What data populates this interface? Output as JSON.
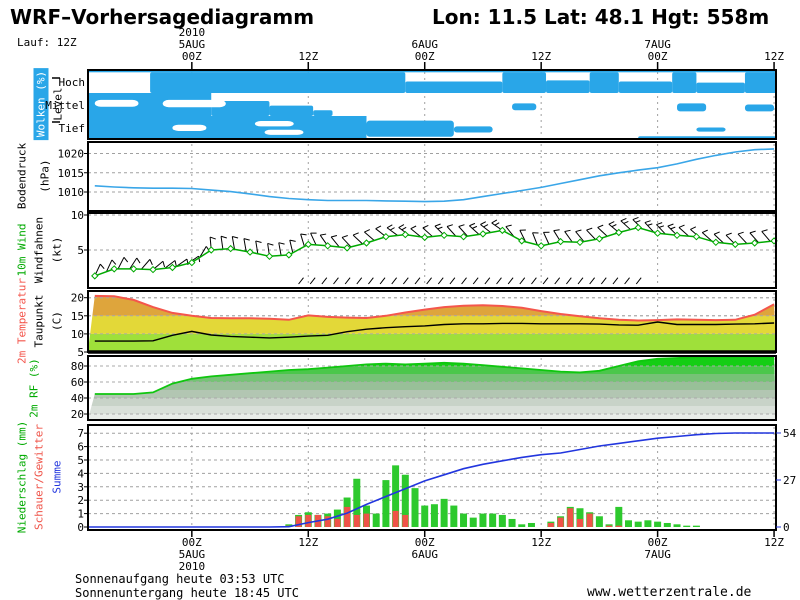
{
  "header": {
    "title": "WRF–Vorhersagediagramm",
    "location": "Lon: 11.5 Lat: 48.1 Hgt: 558m",
    "run": "Lauf: 12Z"
  },
  "footer": {
    "sunrise": "Sonnenaufgang heute 03:53 UTC",
    "sunset": "Sonnenuntergang heute 18:45 UTC",
    "website": "www.wetterzentrale.de"
  },
  "colors": {
    "cloud_blue": "#29A6E8",
    "pressure_line": "#3AA6E8",
    "wind_green": "#00AA00",
    "temp_red": "#F4564C",
    "dewpoint_black": "#000000",
    "rf_green": "#0FC60F",
    "precip_green": "#2DC92D",
    "shower_red": "#EF5348",
    "summe_blue": "#2236DE",
    "grid_gray": "#A0A0A0"
  },
  "time_axis": {
    "ticks": [
      {
        "h": 0,
        "time": "00Z",
        "date": "5AUG",
        "year": "2010"
      },
      {
        "h": 12,
        "time": "12Z"
      },
      {
        "h": 24,
        "time": "00Z",
        "date": "6AUG"
      },
      {
        "h": 36,
        "time": "12Z"
      },
      {
        "h": 48,
        "time": "00Z",
        "date": "7AUG"
      },
      {
        "h": 60,
        "time": "12Z"
      }
    ]
  },
  "chart_data": [
    {
      "id": "clouds",
      "type": "area",
      "label": "Wolken (%)",
      "ylabel": "Level",
      "levels": [
        "Hoch",
        "Mittel",
        "Tief"
      ],
      "cover": {
        "hoch": {
          "blue": [
            [
              -10.7,
              60.2,
              0,
              0.1
            ],
            [
              -4.3,
              22,
              0.1,
              1
            ],
            [
              22,
              32,
              0.5,
              1
            ],
            [
              32,
              36.5,
              0.1,
              1
            ],
            [
              36.5,
              41,
              0.45,
              1
            ],
            [
              41,
              44,
              0.1,
              1
            ],
            [
              44,
              49.5,
              0.5,
              1
            ],
            [
              49.5,
              52,
              0.1,
              1
            ],
            [
              52,
              57,
              0.55,
              1
            ],
            [
              57,
              60.2,
              0.1,
              1
            ]
          ],
          "white": []
        },
        "mittel": {
          "blue": [
            [
              -10.7,
              2,
              0,
              1
            ],
            [
              2,
              8,
              0.35,
              1
            ],
            [
              8,
              12.5,
              0.55,
              1
            ],
            [
              12.5,
              14.5,
              0.75,
              1
            ],
            [
              33,
              35.5,
              0.45,
              0.75
            ],
            [
              50,
              53,
              0.45,
              0.8
            ],
            [
              57,
              60,
              0.5,
              0.8
            ]
          ],
          "white": [
            [
              -10,
              -5.5,
              0.3,
              0.6
            ],
            [
              -3,
              3.5,
              0.3,
              0.62
            ]
          ]
        },
        "tief": {
          "blue": [
            [
              -10.7,
              18,
              0,
              1
            ],
            [
              18,
              27,
              0.2,
              0.9
            ],
            [
              27,
              31,
              0.45,
              0.72
            ],
            [
              46,
              60.2,
              0.88,
              1
            ],
            [
              52,
              55,
              0.5,
              0.68
            ]
          ],
          "white": [
            [
              -2,
              1.5,
              0.38,
              0.65
            ],
            [
              6.5,
              10.5,
              0.22,
              0.45
            ],
            [
              7.5,
              11.5,
              0.6,
              0.82
            ]
          ]
        }
      }
    },
    {
      "id": "pressure",
      "type": "line",
      "label": "Bodendruck",
      "unit": "(hPa)",
      "yticks": [
        1010,
        1015,
        1020
      ],
      "ylim": [
        1005,
        1023
      ],
      "hours": [
        -10,
        -8,
        -6,
        -4,
        -2,
        0,
        2,
        4,
        6,
        8,
        10,
        12,
        14,
        16,
        18,
        20,
        22,
        24,
        26,
        28,
        30,
        32,
        34,
        36,
        38,
        40,
        42,
        44,
        46,
        48,
        50,
        52,
        54,
        56,
        58,
        60
      ],
      "values": [
        1011.6,
        1011.3,
        1011.1,
        1011.0,
        1011.0,
        1010.9,
        1010.5,
        1010.1,
        1009.5,
        1008.8,
        1008.3,
        1008.0,
        1007.8,
        1007.8,
        1007.8,
        1007.7,
        1007.6,
        1007.5,
        1007.6,
        1008.0,
        1008.8,
        1009.6,
        1010.4,
        1011.2,
        1012.2,
        1013.2,
        1014.2,
        1015.0,
        1015.7,
        1016.3,
        1017.3,
        1018.5,
        1019.5,
        1020.4,
        1021.0,
        1021.2
      ]
    },
    {
      "id": "wind",
      "type": "line",
      "label": "10m Wind",
      "label2": "Windfahnen",
      "unit": "(kt)",
      "yticks": [
        5,
        10
      ],
      "ylim": [
        0,
        10.7
      ],
      "hours": [
        -10,
        -8,
        -6,
        -4,
        -2,
        0,
        2,
        4,
        6,
        8,
        10,
        12,
        14,
        16,
        18,
        20,
        22,
        24,
        26,
        28,
        30,
        32,
        34,
        36,
        38,
        40,
        42,
        44,
        46,
        48,
        50,
        52,
        54,
        56,
        58,
        60
      ],
      "values": [
        1.3,
        2.3,
        2.3,
        2.2,
        2.5,
        3.2,
        5.0,
        5.2,
        4.7,
        4.1,
        4.3,
        5.8,
        5.6,
        5.3,
        6.0,
        6.9,
        7.2,
        6.8,
        7.1,
        6.9,
        7.3,
        7.8,
        6.3,
        5.6,
        6.2,
        6.1,
        6.6,
        7.5,
        8.2,
        7.4,
        7.1,
        6.9,
        6.1,
        5.8,
        6.0,
        6.3
      ],
      "barb_angles": [
        25,
        25,
        35,
        50,
        55,
        55,
        -5,
        -10,
        -10,
        -8,
        -12,
        -18,
        -35,
        -42,
        -48,
        -52,
        -55,
        -50,
        -45,
        -40,
        -50,
        -55,
        -28,
        -20,
        -32,
        -38,
        -45,
        -50,
        -46,
        -42,
        -45,
        -50,
        -48,
        -45,
        -42,
        -40
      ],
      "barb_row2": {
        "h0": 11,
        "h1": 47,
        "step": 1.2,
        "angle": 38
      }
    },
    {
      "id": "temp",
      "type": "line",
      "label": "2m Temperatur",
      "label2": "Taupunkt",
      "unit": "(C)",
      "yticks": [
        5,
        10,
        15,
        20
      ],
      "ylim": [
        5,
        22
      ],
      "hours": [
        -10,
        -8,
        -6,
        -4,
        -2,
        0,
        2,
        4,
        6,
        8,
        10,
        12,
        14,
        16,
        18,
        20,
        22,
        24,
        26,
        28,
        30,
        32,
        34,
        36,
        38,
        40,
        42,
        44,
        46,
        48,
        50,
        52,
        54,
        56,
        58,
        60
      ],
      "temperature": [
        20.5,
        20.4,
        19.4,
        17.4,
        15.8,
        15.0,
        14.4,
        14.3,
        14.3,
        14.2,
        13.9,
        15.1,
        14.7,
        14.5,
        14.4,
        15.0,
        15.9,
        16.7,
        17.4,
        17.8,
        17.9,
        17.7,
        17.2,
        16.3,
        15.5,
        14.9,
        14.3,
        13.9,
        13.7,
        13.8,
        14.0,
        13.9,
        13.8,
        13.9,
        15.3,
        18.2
      ],
      "dewpoint": [
        8.0,
        8.0,
        8.0,
        8.1,
        9.6,
        10.7,
        9.7,
        9.3,
        9.1,
        8.9,
        9.1,
        9.4,
        9.6,
        10.6,
        11.3,
        11.7,
        12.0,
        12.2,
        12.6,
        12.8,
        12.8,
        12.9,
        12.9,
        12.8,
        12.8,
        12.8,
        12.7,
        12.5,
        12.4,
        13.3,
        12.6,
        12.6,
        12.6,
        12.7,
        12.8,
        13.0
      ],
      "bands": [
        [
          5,
          10,
          "#9FE03A"
        ],
        [
          10,
          15,
          "#E3D838"
        ],
        [
          15,
          20,
          "#DEA53C"
        ],
        [
          20,
          22.5,
          "#DB8A31"
        ]
      ]
    },
    {
      "id": "rf",
      "type": "area",
      "label": "2m RF (%)",
      "yticks": [
        20,
        40,
        60,
        80
      ],
      "ylim": [
        12,
        92
      ],
      "hours": [
        -10,
        -8,
        -6,
        -4,
        -2,
        0,
        2,
        4,
        6,
        8,
        10,
        12,
        14,
        16,
        18,
        20,
        22,
        24,
        26,
        28,
        30,
        32,
        34,
        36,
        38,
        40,
        42,
        44,
        46,
        48,
        50,
        52,
        54,
        56,
        58,
        60
      ],
      "values": [
        45,
        45,
        45,
        47,
        58,
        64,
        67,
        69,
        71,
        73,
        75,
        76,
        78,
        80,
        82,
        83,
        82,
        83,
        84,
        83,
        81,
        79,
        77,
        75,
        73,
        72,
        74,
        80,
        86,
        89,
        90,
        91,
        91,
        92,
        93,
        93
      ],
      "bands": [
        [
          12,
          20,
          "#E8ECE8"
        ],
        [
          20,
          30,
          "#D9E0D9"
        ],
        [
          30,
          40,
          "#C8D3C8"
        ],
        [
          40,
          50,
          "#B2C6B2"
        ],
        [
          50,
          60,
          "#98C098"
        ],
        [
          60,
          70,
          "#76C276"
        ],
        [
          70,
          80,
          "#4BC74B"
        ],
        [
          80,
          95,
          "#14CE14"
        ]
      ]
    },
    {
      "id": "precip",
      "type": "bar+line",
      "label": "Niederschlag (mm)",
      "label2": "Schauer/Gewitter",
      "label3": "Summe",
      "yticks_left": [
        0,
        1,
        2,
        3,
        4,
        5,
        6,
        7
      ],
      "yticks_right": [
        0,
        27,
        54
      ],
      "bar_hours": [
        10,
        11,
        12,
        13,
        14,
        15,
        16,
        17,
        18,
        19,
        20,
        21,
        22,
        23,
        24,
        25,
        26,
        27,
        28,
        29,
        30,
        31,
        32,
        33,
        34,
        35,
        36,
        37,
        38,
        39,
        40,
        41,
        42,
        43,
        44,
        45,
        46,
        47,
        48,
        49,
        50,
        51,
        52
      ],
      "total_mm": [
        0.2,
        0.9,
        1.1,
        0.9,
        1.0,
        1.3,
        2.2,
        3.6,
        1.6,
        1.0,
        3.5,
        4.6,
        3.9,
        2.9,
        1.6,
        1.7,
        2.1,
        1.6,
        1.0,
        0.7,
        1.0,
        1.0,
        0.9,
        0.6,
        0.2,
        0.3,
        0.0,
        0.4,
        0.8,
        1.5,
        1.4,
        1.1,
        0.8,
        0.2,
        1.5,
        0.5,
        0.4,
        0.5,
        0.4,
        0.3,
        0.2,
        0.1,
        0.1
      ],
      "shower_mm": [
        0.1,
        0.8,
        0.9,
        0.9,
        0.8,
        0.6,
        1.5,
        0.9,
        1.0,
        0.0,
        0.0,
        1.2,
        0.9,
        0.0,
        0.0,
        0.0,
        0.0,
        0.0,
        0.0,
        0.0,
        0.0,
        0.0,
        0.0,
        0.0,
        0.0,
        0.0,
        0.0,
        0.3,
        0.7,
        1.4,
        0.6,
        1.0,
        0.0,
        0.1,
        0.1,
        0.0,
        0.0,
        0.0,
        0.0,
        0.0,
        0.0,
        0.0,
        0.0
      ],
      "summe": [
        0,
        0,
        0,
        0,
        0,
        0,
        0,
        0,
        0,
        0,
        0.2,
        2.5,
        4.5,
        8,
        13,
        17.5,
        22,
        26.5,
        30,
        33.5,
        36,
        38,
        40,
        41.5,
        42.5,
        44.5,
        46.5,
        48,
        49.5,
        51,
        52,
        53,
        53.7,
        54,
        54,
        54
      ]
    }
  ]
}
